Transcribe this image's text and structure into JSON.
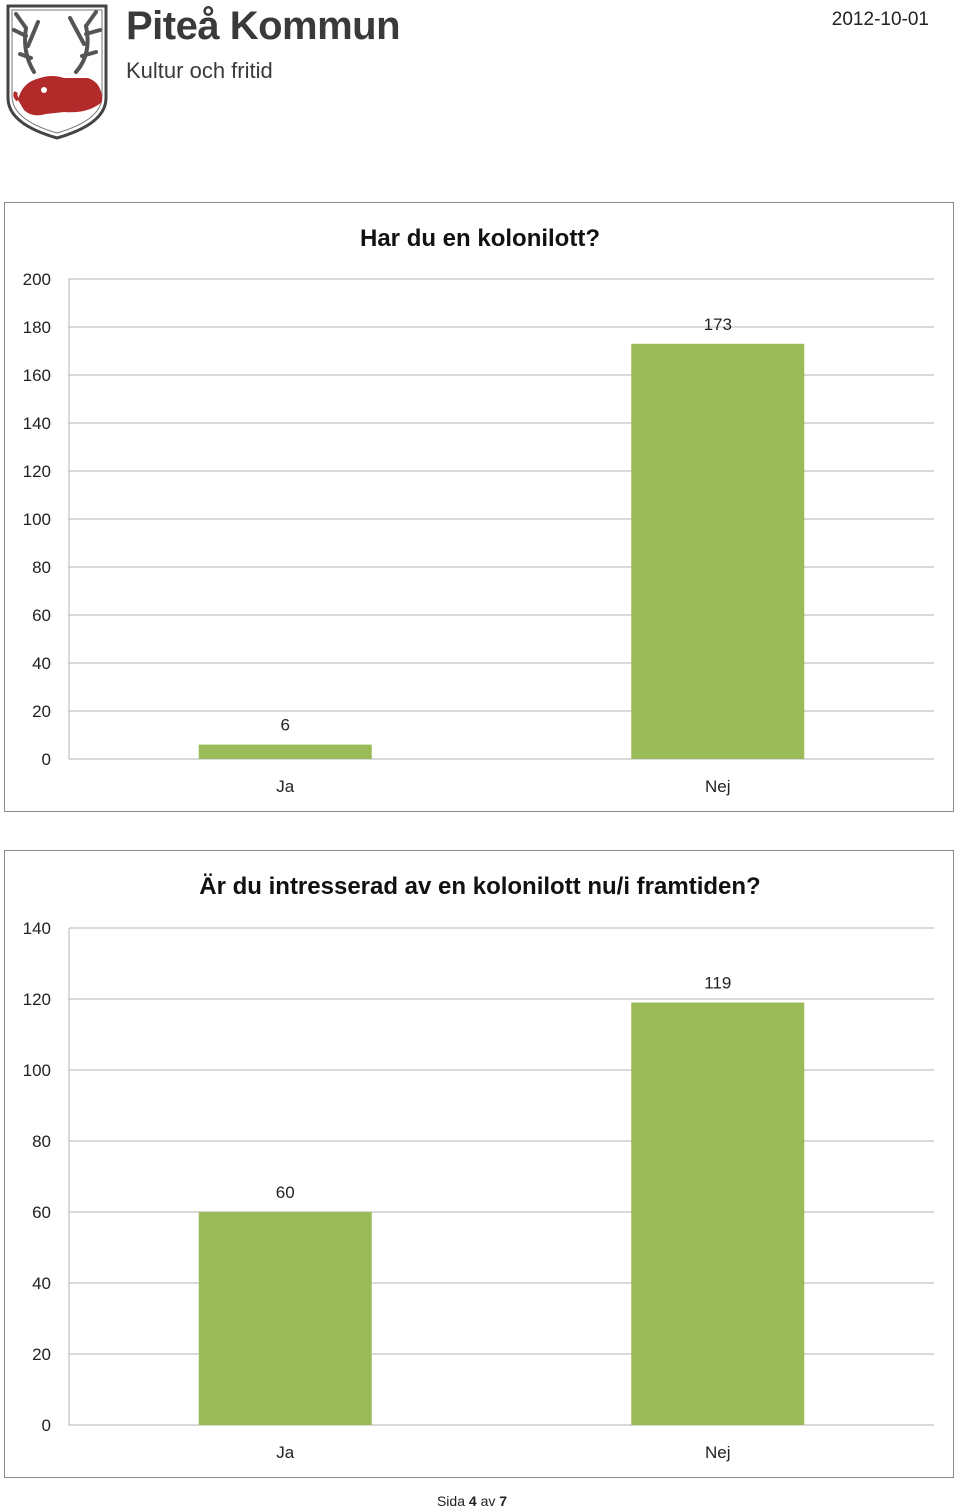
{
  "header": {
    "org_name": "Piteå Kommun",
    "department": "Kultur och fritid",
    "date": "2012-10-01",
    "logo_icon": "reindeer-coat-of-arms"
  },
  "footer": {
    "prefix": "Sida",
    "page": "4",
    "separator": "av",
    "total": "7"
  },
  "colors": {
    "bar": "#9bbb59",
    "gridline": "#b3b3b3",
    "border": "#8c8c8c"
  },
  "chart_data": [
    {
      "type": "bar",
      "title": "Har du en kolonilott?",
      "categories": [
        "Ja",
        "Nej"
      ],
      "values": [
        6,
        173
      ],
      "ylim": [
        0,
        200
      ],
      "yticks": [
        0,
        20,
        40,
        60,
        80,
        100,
        120,
        140,
        160,
        180,
        200
      ],
      "grid": true,
      "legend": "none",
      "xlabel": "",
      "ylabel": ""
    },
    {
      "type": "bar",
      "title": "Är du intresserad av en kolonilott nu/i framtiden?",
      "categories": [
        "Ja",
        "Nej"
      ],
      "values": [
        60,
        119
      ],
      "ylim": [
        0,
        140
      ],
      "yticks": [
        0,
        20,
        40,
        60,
        80,
        100,
        120,
        140
      ],
      "grid": true,
      "legend": "none",
      "xlabel": "",
      "ylabel": ""
    }
  ]
}
